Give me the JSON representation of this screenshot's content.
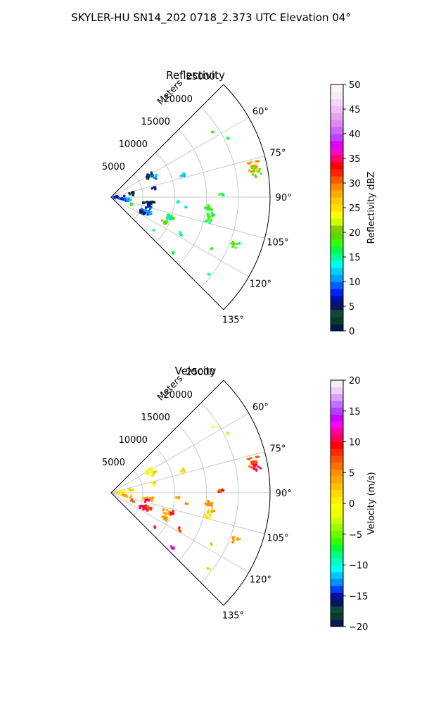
{
  "figure": {
    "title": "SKYLER-HU  SN14_202  0718_2.373 UTC Elevation 04°"
  },
  "chart_data": [
    {
      "type": "polar_sector_scatter",
      "title": "Reflectivity",
      "range_label": "Meters",
      "range_ticks": [
        5000,
        10000,
        15000,
        20000,
        25000
      ],
      "range_tick_labels": [
        "5000",
        "10000",
        "15000",
        "20000",
        "25000"
      ],
      "rmax": 25000,
      "azimuth_range_deg": [
        45,
        135
      ],
      "azimuth_ticks_deg": [
        60,
        75,
        90,
        105,
        120,
        135
      ],
      "azimuth_tick_labels": [
        "60°",
        "75°",
        "90°",
        "105°",
        "120°",
        "135°"
      ],
      "grid": true,
      "colorbar": {
        "label": "Reflectivity dBZ",
        "vmin": 0,
        "vmax": 50,
        "ticks": [
          0,
          5,
          10,
          15,
          20,
          25,
          30,
          35,
          40,
          45,
          50
        ],
        "tick_labels": [
          "0",
          "5",
          "10",
          "15",
          "20",
          "25",
          "30",
          "35",
          "40",
          "45",
          "50"
        ],
        "colors": [
          "#001a4d",
          "#0a3a2a",
          "#0c4a3a",
          "#0a1560",
          "#0010a0",
          "#0020ff",
          "#0060ff",
          "#00a0ff",
          "#00d0ff",
          "#00ffee",
          "#00ff99",
          "#00ff44",
          "#33ff00",
          "#55dd00",
          "#88cc00",
          "#ccff00",
          "#ffff00",
          "#ffe000",
          "#ffc800",
          "#ffaa00",
          "#ff8800",
          "#ff5500",
          "#ff2200",
          "#ff0000",
          "#ff0066",
          "#ff00cc",
          "#dd00ff",
          "#bb44ff",
          "#cc66ff",
          "#dd88ee",
          "#e6a6ee",
          "#eec0f2",
          "#f4d8f6",
          "#f9ecfa",
          "#fdf6fd"
        ]
      },
      "clusters": [
        {
          "az": 78,
          "r": 23000,
          "v": 28,
          "n": 18,
          "spread_r": 900,
          "spread_az": 2.0
        },
        {
          "az": 80,
          "r": 23200,
          "v": 18,
          "n": 10,
          "spread_r": 900,
          "spread_az": 2.5
        },
        {
          "az": 63,
          "r": 20500,
          "v": 18,
          "n": 3,
          "spread_r": 200,
          "spread_az": 0.5
        },
        {
          "az": 57,
          "r": 19000,
          "v": 18,
          "n": 2,
          "spread_r": 200,
          "spread_az": 0.5
        },
        {
          "az": 89,
          "r": 17200,
          "v": 18,
          "n": 5,
          "spread_r": 600,
          "spread_az": 0.7
        },
        {
          "az": 96,
          "r": 15500,
          "v": 18,
          "n": 12,
          "spread_r": 600,
          "spread_az": 1.5
        },
        {
          "az": 101,
          "r": 16000,
          "v": 18,
          "n": 10,
          "spread_r": 600,
          "spread_az": 2.0
        },
        {
          "az": 104,
          "r": 15800,
          "v": 17,
          "n": 6,
          "spread_r": 600,
          "spread_az": 1.5
        },
        {
          "az": 111,
          "r": 20800,
          "v": 18,
          "n": 8,
          "spread_r": 700,
          "spread_az": 1.5
        },
        {
          "az": 117,
          "r": 17700,
          "v": 18,
          "n": 2,
          "spread_r": 300,
          "spread_az": 0.5
        },
        {
          "az": 128,
          "r": 19500,
          "v": 15,
          "n": 2,
          "spread_r": 300,
          "spread_az": 0.5
        },
        {
          "az": 73,
          "r": 11800,
          "v": 12,
          "n": 6,
          "spread_r": 400,
          "spread_az": 1.2
        },
        {
          "az": 94,
          "r": 10500,
          "v": 15,
          "n": 3,
          "spread_r": 300,
          "spread_az": 0.8
        },
        {
          "az": 98,
          "r": 12000,
          "v": 13,
          "n": 2,
          "spread_r": 300,
          "spread_az": 0.8
        },
        {
          "az": 61,
          "r": 6900,
          "v": 5,
          "n": 14,
          "spread_r": 600,
          "spread_az": 3.0
        },
        {
          "az": 65,
          "r": 7500,
          "v": 10,
          "n": 6,
          "spread_r": 600,
          "spread_az": 3.0
        },
        {
          "az": 78,
          "r": 6800,
          "v": 5,
          "n": 4,
          "spread_r": 400,
          "spread_az": 2.0
        },
        {
          "az": 99,
          "r": 6000,
          "v": 4,
          "n": 22,
          "spread_r": 900,
          "spread_az": 2.5
        },
        {
          "az": 105,
          "r": 6200,
          "v": 8,
          "n": 6,
          "spread_r": 500,
          "spread_az": 2.0
        },
        {
          "az": 113,
          "r": 5900,
          "v": 10,
          "n": 26,
          "spread_r": 900,
          "spread_az": 3.0
        },
        {
          "az": 116,
          "r": 5400,
          "v": 5,
          "n": 8,
          "spread_r": 500,
          "spread_az": 2.0
        },
        {
          "az": 109,
          "r": 9300,
          "v": 13,
          "n": 14,
          "spread_r": 900,
          "spread_az": 2.0
        },
        {
          "az": 108,
          "r": 9800,
          "v": 18,
          "n": 8,
          "spread_r": 600,
          "spread_az": 1.5
        },
        {
          "az": 115,
          "r": 9200,
          "v": 20,
          "n": 10,
          "spread_r": 500,
          "spread_az": 1.5
        },
        {
          "az": 118,
          "r": 12300,
          "v": 16,
          "n": 4,
          "spread_r": 400,
          "spread_az": 1.5
        },
        {
          "az": 128,
          "r": 8600,
          "v": 14,
          "n": 2,
          "spread_r": 300,
          "spread_az": 0.5
        },
        {
          "az": 132,
          "r": 12900,
          "v": 18,
          "n": 3,
          "spread_r": 300,
          "spread_az": 0.8
        },
        {
          "az": 90,
          "r": 1300,
          "v": 8,
          "n": 18,
          "spread_r": 900,
          "spread_az": 12
        },
        {
          "az": 100,
          "r": 2600,
          "v": 10,
          "n": 10,
          "spread_r": 700,
          "spread_az": 5
        },
        {
          "az": 80,
          "r": 3200,
          "v": 4,
          "n": 6,
          "spread_r": 500,
          "spread_az": 5
        },
        {
          "az": 110,
          "r": 3600,
          "v": 18,
          "n": 4,
          "spread_r": 300,
          "spread_az": 2
        }
      ]
    },
    {
      "type": "polar_sector_scatter",
      "title": "Velocity",
      "range_label": "Meters",
      "range_ticks": [
        5000,
        10000,
        15000,
        20000,
        25000
      ],
      "range_tick_labels": [
        "5000",
        "10000",
        "15000",
        "20000",
        "25000"
      ],
      "rmax": 25000,
      "azimuth_range_deg": [
        45,
        135
      ],
      "azimuth_ticks_deg": [
        60,
        75,
        90,
        105,
        120,
        135
      ],
      "azimuth_tick_labels": [
        "60°",
        "75°",
        "90°",
        "105°",
        "120°",
        "135°"
      ],
      "grid": true,
      "colorbar": {
        "label": "Velocity (m/s)",
        "vmin": -20,
        "vmax": 20,
        "ticks": [
          -20,
          -15,
          -10,
          -5,
          0,
          5,
          10,
          15,
          20
        ],
        "tick_labels": [
          "−20",
          "−15",
          "−10",
          "−5",
          "0",
          "5",
          "10",
          "15",
          "20"
        ],
        "colors": [
          "#001a4d",
          "#0a3a2a",
          "#0c4a3a",
          "#0a1560",
          "#0010a0",
          "#0040ff",
          "#0090ff",
          "#00c8ff",
          "#00ffff",
          "#00ffc0",
          "#00ff80",
          "#00ff30",
          "#33ff00",
          "#66ff00",
          "#99ff00",
          "#ccff00",
          "#eeff00",
          "#ffff00",
          "#ffee00",
          "#ffd800",
          "#ffc000",
          "#ffa800",
          "#ff9000",
          "#ff7000",
          "#ff5000",
          "#ff2800",
          "#ff0000",
          "#ff0050",
          "#ff00a0",
          "#ff00ff",
          "#d000ff",
          "#b040ff",
          "#c070ff",
          "#d8a0f8",
          "#ecd0fa",
          "#f8ecfc"
        ]
      },
      "clusters": [
        {
          "az": 78,
          "r": 23000,
          "v": 6,
          "n": 18,
          "spread_r": 900,
          "spread_az": 2.0
        },
        {
          "az": 80,
          "r": 23300,
          "v": 10,
          "n": 8,
          "spread_r": 700,
          "spread_az": 1.5
        },
        {
          "az": 63,
          "r": 20500,
          "v": 1,
          "n": 3,
          "spread_r": 200,
          "spread_az": 0.5
        },
        {
          "az": 57,
          "r": 19000,
          "v": 1,
          "n": 2,
          "spread_r": 200,
          "spread_az": 0.5
        },
        {
          "az": 89,
          "r": 17200,
          "v": 8,
          "n": 5,
          "spread_r": 600,
          "spread_az": 0.7
        },
        {
          "az": 96,
          "r": 15500,
          "v": 5,
          "n": 12,
          "spread_r": 600,
          "spread_az": 1.5
        },
        {
          "az": 101,
          "r": 16000,
          "v": 3,
          "n": 8,
          "spread_r": 600,
          "spread_az": 2.0
        },
        {
          "az": 104,
          "r": 15800,
          "v": 2,
          "n": 6,
          "spread_r": 600,
          "spread_az": 1.5
        },
        {
          "az": 111,
          "r": 20800,
          "v": 4,
          "n": 8,
          "spread_r": 700,
          "spread_az": 1.5
        },
        {
          "az": 117,
          "r": 17700,
          "v": 2,
          "n": 2,
          "spread_r": 300,
          "spread_az": 0.5
        },
        {
          "az": 128,
          "r": 19500,
          "v": 1,
          "n": 2,
          "spread_r": 300,
          "spread_az": 0.5
        },
        {
          "az": 73,
          "r": 11800,
          "v": 1,
          "n": 6,
          "spread_r": 400,
          "spread_az": 1.2
        },
        {
          "az": 94,
          "r": 10500,
          "v": 5,
          "n": 3,
          "spread_r": 300,
          "spread_az": 0.8
        },
        {
          "az": 98,
          "r": 12000,
          "v": 6,
          "n": 2,
          "spread_r": 300,
          "spread_az": 0.8
        },
        {
          "az": 61,
          "r": 6900,
          "v": 0,
          "n": 14,
          "spread_r": 600,
          "spread_az": 3.0
        },
        {
          "az": 65,
          "r": 7500,
          "v": 2,
          "n": 6,
          "spread_r": 600,
          "spread_az": 3.0
        },
        {
          "az": 78,
          "r": 6800,
          "v": 1,
          "n": 4,
          "spread_r": 400,
          "spread_az": 2.0
        },
        {
          "az": 99,
          "r": 6000,
          "v": 3,
          "n": 16,
          "spread_r": 900,
          "spread_az": 2.5
        },
        {
          "az": 103,
          "r": 5600,
          "v": 11,
          "n": 6,
          "spread_r": 500,
          "spread_az": 2.0
        },
        {
          "az": 113,
          "r": 5900,
          "v": 8,
          "n": 26,
          "spread_r": 900,
          "spread_az": 3.0
        },
        {
          "az": 116,
          "r": 5400,
          "v": 11,
          "n": 6,
          "spread_r": 500,
          "spread_az": 2.0
        },
        {
          "az": 109,
          "r": 9300,
          "v": 4,
          "n": 14,
          "spread_r": 900,
          "spread_az": 2.0
        },
        {
          "az": 108,
          "r": 9800,
          "v": 10,
          "n": 6,
          "spread_r": 600,
          "spread_az": 1.5
        },
        {
          "az": 115,
          "r": 9200,
          "v": 4,
          "n": 10,
          "spread_r": 500,
          "spread_az": 1.5
        },
        {
          "az": 118,
          "r": 12300,
          "v": 9,
          "n": 4,
          "spread_r": 400,
          "spread_az": 1.5
        },
        {
          "az": 128,
          "r": 8600,
          "v": 11,
          "n": 2,
          "spread_r": 300,
          "spread_az": 0.5
        },
        {
          "az": 132,
          "r": 12900,
          "v": 12,
          "n": 4,
          "spread_r": 300,
          "spread_az": 0.8
        },
        {
          "az": 90,
          "r": 1300,
          "v": 1,
          "n": 14,
          "spread_r": 900,
          "spread_az": 12
        },
        {
          "az": 100,
          "r": 2600,
          "v": 3,
          "n": 8,
          "spread_r": 700,
          "spread_az": 5
        },
        {
          "az": 80,
          "r": 3200,
          "v": 1,
          "n": 5,
          "spread_r": 500,
          "spread_az": 5
        },
        {
          "az": 110,
          "r": 3600,
          "v": 8,
          "n": 4,
          "spread_r": 300,
          "spread_az": 2
        }
      ]
    }
  ]
}
